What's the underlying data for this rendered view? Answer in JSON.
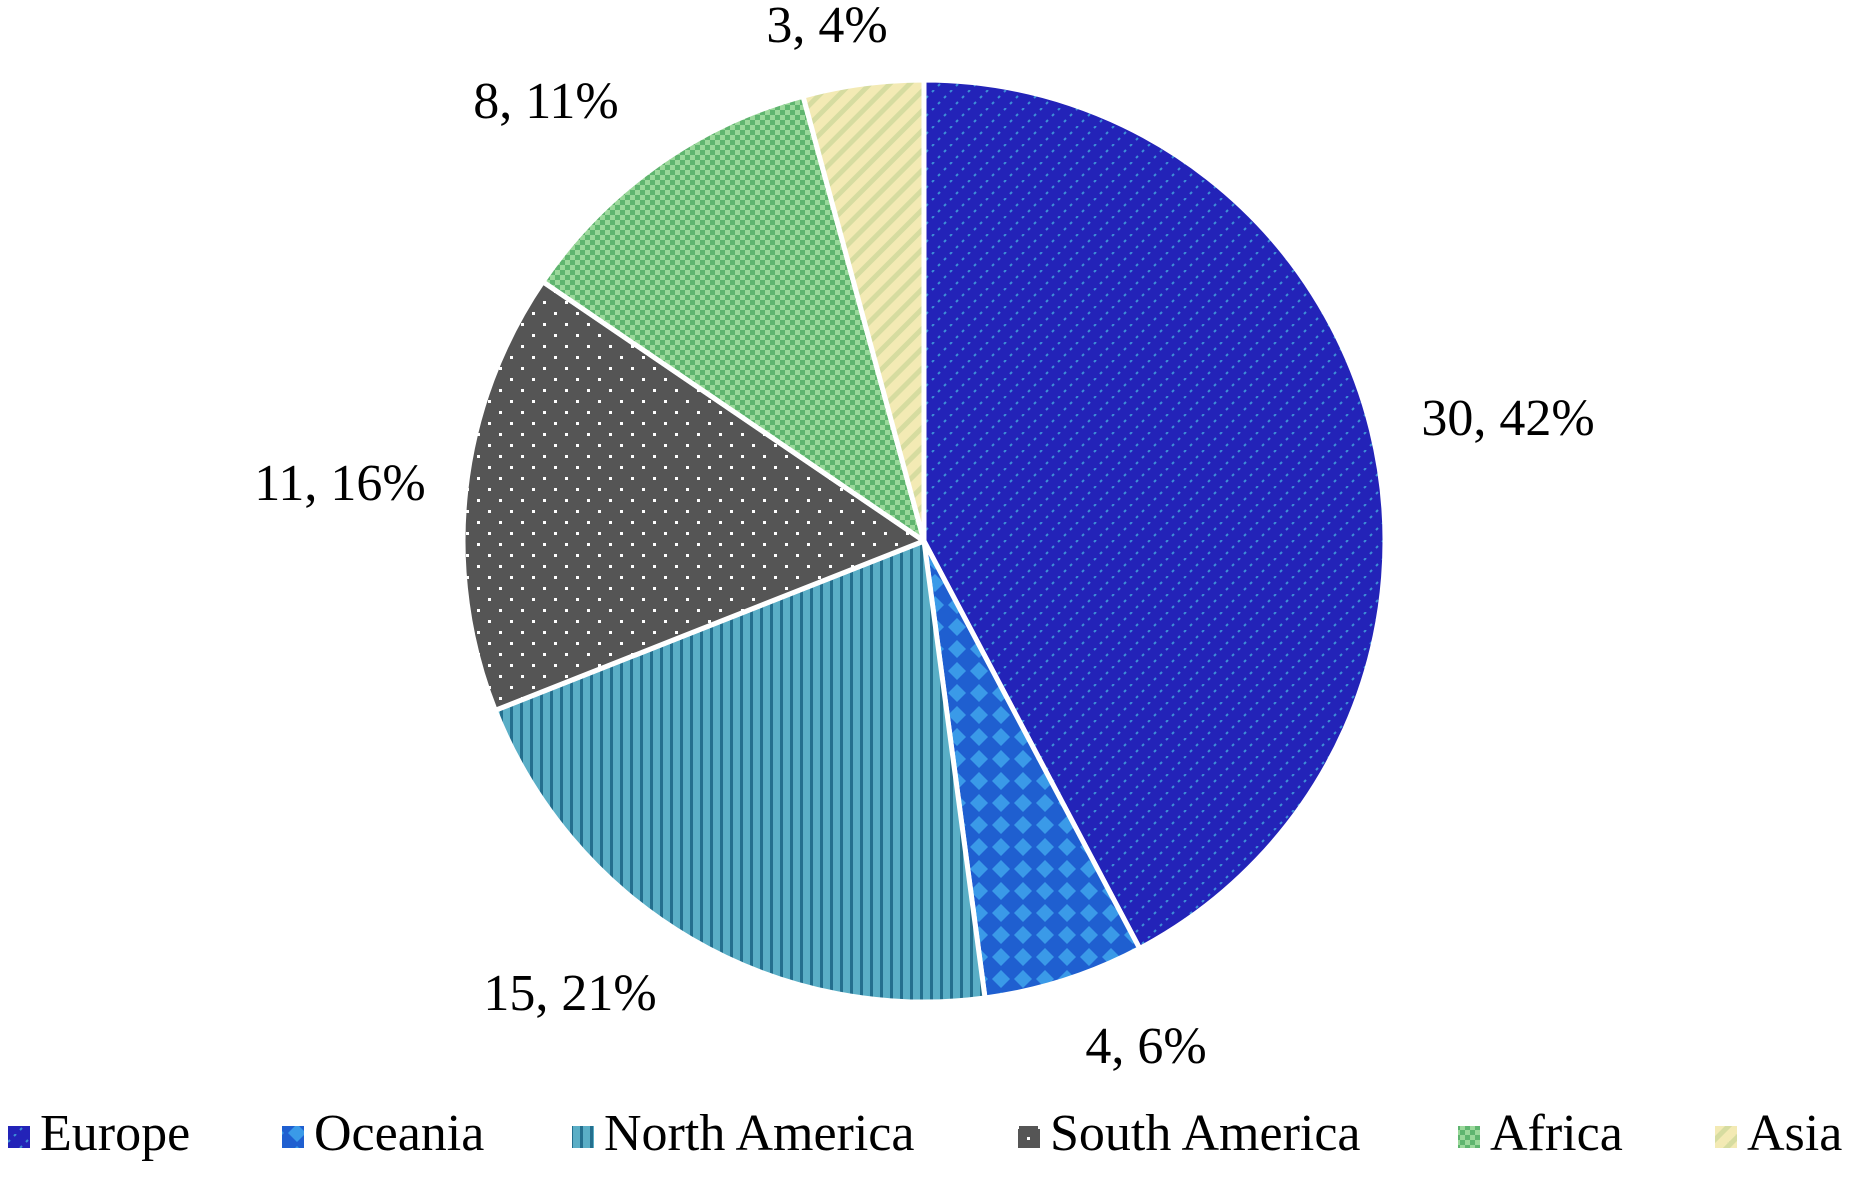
{
  "chart_data": {
    "type": "pie",
    "title": "",
    "categories": [
      "Europe",
      "Oceania",
      "North America",
      "South America",
      "Africa",
      "Asia"
    ],
    "values": [
      30,
      4,
      15,
      11,
      8,
      3
    ],
    "percent_labels": [
      "42%",
      "6%",
      "21%",
      "16%",
      "11%",
      "4%"
    ],
    "data_labels": [
      "30, 42%",
      "4, 6%",
      "15, 21%",
      "11, 16%",
      "8, 11%",
      "3, 4%"
    ],
    "colors": [
      "#2323b8",
      "#2277dd",
      "#4a9fb8",
      "#575757",
      "#8fd28f",
      "#f0e6a8"
    ],
    "patterns": [
      "diagonal-dashes",
      "diamond-checker",
      "vertical-lines",
      "dots",
      "checker",
      "diagonal-stripes"
    ],
    "start_angle": "12 o'clock",
    "direction": "clockwise",
    "legend": {
      "position": "bottom",
      "entries": [
        "Europe",
        "Oceania",
        "North America",
        "South America",
        "Africa",
        "Asia"
      ]
    }
  }
}
